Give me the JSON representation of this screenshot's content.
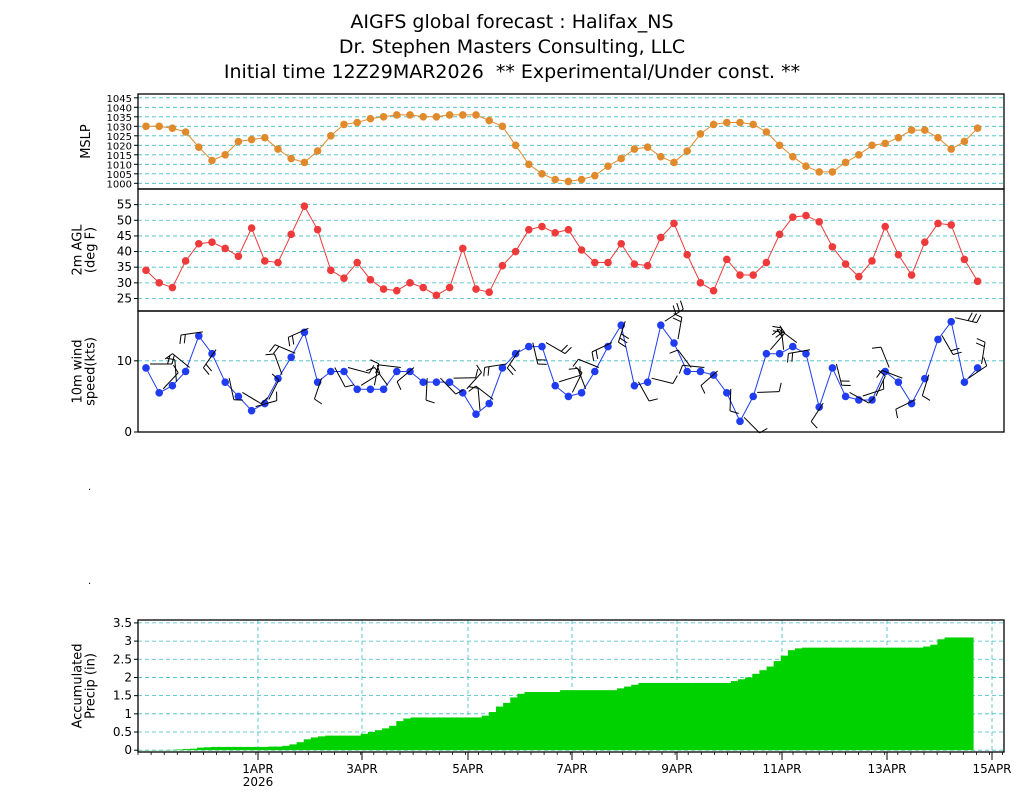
{
  "header": {
    "line1": "AIGFS global forecast : Halifax_NS",
    "line2": "Dr. Stephen Masters Consulting, LLC",
    "line3": "Initial time 12Z29MAR2026  ** Experimental/Under const. **"
  },
  "colors": {
    "mslp": "#e08a2c",
    "temp": "#ee3a3a",
    "wind": "#1f3cf0",
    "precip": "#00d200",
    "grid": "#3cbcc4"
  },
  "chart_data": [
    {
      "type": "line",
      "panel": "mslp",
      "ylabel": "MSLP",
      "yticks": [
        1000,
        1005,
        1010,
        1015,
        1020,
        1025,
        1030,
        1035,
        1040,
        1045
      ],
      "ylim": [
        997,
        1047
      ],
      "x_days_start": "12Z29MAR2026",
      "x_step_hours": 6,
      "values": [
        1030,
        1030,
        1029,
        1027,
        1019,
        1012,
        1015,
        1022,
        1023,
        1024,
        1018,
        1013,
        1011,
        1017,
        1025,
        1031,
        1032,
        1034,
        1035,
        1036,
        1036,
        1035,
        1035,
        1036,
        1036,
        1036,
        1033,
        1030,
        1020,
        1010,
        1005,
        1002,
        1001,
        1002,
        1004,
        1009,
        1013,
        1018,
        1019,
        1014,
        1011,
        1017,
        1026,
        1031,
        1032,
        1032,
        1031,
        1027,
        1020,
        1014,
        1009,
        1006,
        1006,
        1011,
        1015,
        1020,
        1021,
        1024,
        1028,
        1028,
        1024,
        1018,
        1022,
        1029
      ],
      "grid": true
    },
    {
      "type": "line",
      "panel": "temperature",
      "ylabel": "2m AGL (deg F)",
      "yticks": [
        25,
        30,
        35,
        40,
        45,
        50,
        55
      ],
      "ylim": [
        21,
        60
      ],
      "values": [
        34,
        30,
        28.5,
        37,
        42.5,
        43,
        41,
        38.5,
        47.5,
        37,
        36.5,
        45.5,
        54.5,
        47,
        34,
        31.5,
        36.5,
        31,
        28,
        27.5,
        30,
        28.5,
        26,
        28.5,
        41,
        28,
        27,
        35.5,
        40,
        47,
        48,
        46,
        47,
        40.5,
        36.5,
        36.5,
        42.5,
        36,
        35.5,
        44.5,
        49,
        39,
        30,
        27.5,
        37.5,
        32.5,
        32.5,
        36.5,
        45.5,
        51,
        51.5,
        49.5,
        41.5,
        36,
        32,
        37,
        48,
        39,
        32.5,
        43,
        49,
        48.5,
        37.5,
        30.5
      ],
      "grid": true
    },
    {
      "type": "line",
      "panel": "wind",
      "ylabel": "10m wind speed(kts)",
      "yticks": [
        0,
        10
      ],
      "ylim": [
        0,
        17
      ],
      "values": [
        9,
        5.5,
        6.5,
        8.5,
        13.5,
        11,
        7,
        5,
        3,
        4,
        7.5,
        10.5,
        14,
        7,
        8.5,
        8.5,
        6,
        6,
        6,
        8.5,
        8.5,
        7,
        7,
        7,
        5.5,
        2.5,
        4,
        9,
        11,
        12,
        12,
        6.5,
        5,
        5.5,
        8.5,
        12,
        15,
        6.5,
        7,
        15,
        12.5,
        8.5,
        8.5,
        8,
        5.5,
        1.5,
        5,
        11,
        11,
        12,
        11,
        3.5,
        9,
        5,
        4.5,
        4.5,
        8.5,
        7,
        4,
        7.5,
        13,
        15.5,
        7,
        9
      ],
      "grid": true
    },
    {
      "type": "area",
      "panel": "precip",
      "ylabel": "Accumulated Precip (in)",
      "yticks": [
        0,
        0.5,
        1,
        1.5,
        2,
        2.5,
        3,
        3.5
      ],
      "ytick_labels": [
        "0",
        "0.5",
        "1",
        "1.5",
        "2",
        "2.5",
        "3",
        "3.5"
      ],
      "ylim": [
        -0.05,
        3.58
      ],
      "values": [
        0,
        0,
        0,
        0,
        0.01,
        0.02,
        0.03,
        0.04,
        0.07,
        0.08,
        0.09,
        0.09,
        0.09,
        0.09,
        0.09,
        0.09,
        0.09,
        0.09,
        0.1,
        0.1,
        0.12,
        0.16,
        0.22,
        0.3,
        0.35,
        0.38,
        0.4,
        0.4,
        0.4,
        0.4,
        0.4,
        0.45,
        0.5,
        0.55,
        0.6,
        0.67,
        0.8,
        0.87,
        0.9,
        0.9,
        0.9,
        0.9,
        0.9,
        0.9,
        0.9,
        0.9,
        0.9,
        0.9,
        0.95,
        1.05,
        1.2,
        1.3,
        1.45,
        1.55,
        1.6,
        1.6,
        1.6,
        1.6,
        1.6,
        1.65,
        1.65,
        1.65,
        1.65,
        1.65,
        1.65,
        1.65,
        1.65,
        1.7,
        1.75,
        1.8,
        1.85,
        1.85,
        1.85,
        1.85,
        1.85,
        1.85,
        1.85,
        1.85,
        1.85,
        1.85,
        1.85,
        1.85,
        1.85,
        1.9,
        1.95,
        2,
        2.1,
        2.2,
        2.3,
        2.45,
        2.6,
        2.75,
        2.8,
        2.82,
        2.82,
        2.82,
        2.82,
        2.82,
        2.82,
        2.82,
        2.82,
        2.82,
        2.82,
        2.82,
        2.82,
        2.82,
        2.82,
        2.82,
        2.82,
        2.82,
        2.85,
        2.9,
        3.05,
        3.1,
        3.1,
        3.1,
        3.1
      ],
      "grid": true
    }
  ],
  "x_axis": {
    "tick_labels": [
      "1APR",
      "3APR",
      "5APR",
      "7APR",
      "9APR",
      "11APR",
      "13APR",
      "15APR"
    ],
    "year_label": "2026"
  }
}
